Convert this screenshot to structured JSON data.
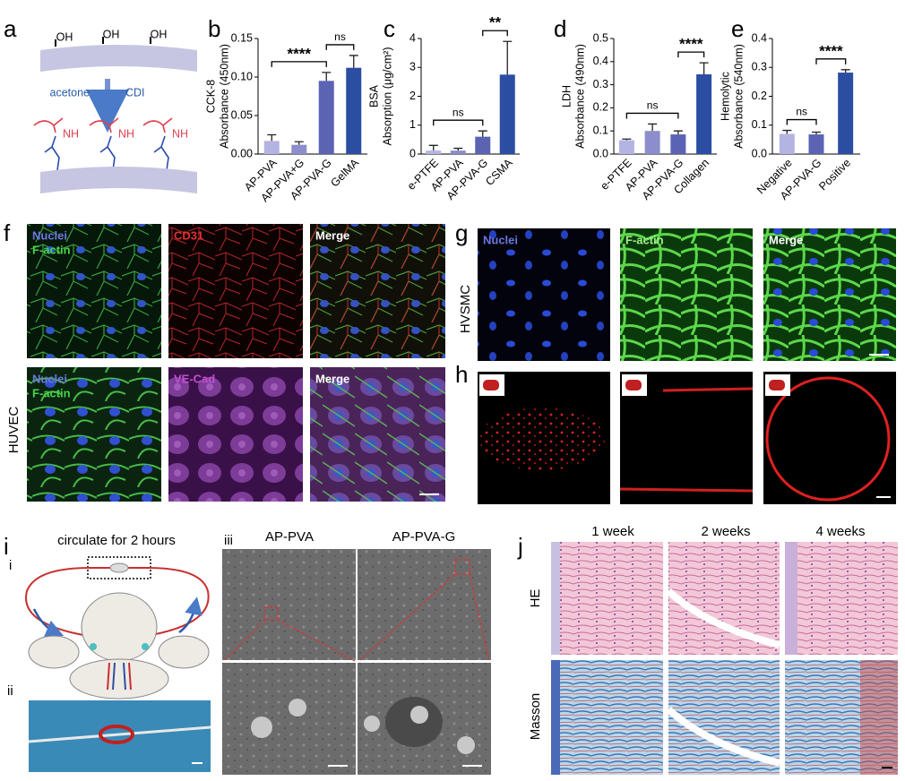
{
  "chart_data": [
    {
      "type": "bar",
      "panel": "b",
      "y_label": [
        "CCK-8",
        "Absorbance (450nm)"
      ],
      "categories": [
        "AP-PVA",
        "AP-PVA+G",
        "AP-PVA-G",
        "GelMA"
      ],
      "values": [
        0.017,
        0.012,
        0.095,
        0.112
      ],
      "errors": [
        0.008,
        0.004,
        0.011,
        0.016
      ],
      "colors": [
        "#b4b4e2",
        "#8c8ecb",
        "#5b63b3",
        "#2b4ea2"
      ],
      "ylim": [
        0,
        0.15
      ],
      "yticks": [
        {
          "value": 0,
          "label": "0.00"
        },
        {
          "value": 0.05,
          "label": "0.05"
        },
        {
          "value": 0.1,
          "label": "0.10"
        },
        {
          "value": 0.15,
          "label": "0.15"
        }
      ],
      "significance": [
        {
          "text": "****",
          "from": "AP-PVA",
          "to": "AP-PVA-G"
        },
        {
          "text": "ns",
          "from": "AP-PVA-G",
          "to": "GelMA"
        }
      ]
    },
    {
      "type": "bar",
      "panel": "c",
      "y_label": [
        "BSA",
        "Absorption (μg/cm²)"
      ],
      "categories": [
        "e-PTFE",
        "AP-PVA",
        "AP-PVA-G",
        "CSMA"
      ],
      "values": [
        0.12,
        0.12,
        0.6,
        2.75
      ],
      "errors": [
        0.18,
        0.08,
        0.2,
        1.15
      ],
      "colors": [
        "#b4b4e2",
        "#8c8ecb",
        "#5b63b3",
        "#2b4ea2"
      ],
      "ylim": [
        0,
        4
      ],
      "yticks": [
        0,
        1,
        2,
        3,
        4
      ],
      "significance": [
        {
          "text": "ns",
          "from": "e-PTFE",
          "to": "AP-PVA-G"
        },
        {
          "text": "**",
          "from": "AP-PVA-G",
          "to": "CSMA"
        }
      ]
    },
    {
      "type": "bar",
      "panel": "d",
      "y_label": [
        "LDH",
        "Absorbance (490nm)"
      ],
      "categories": [
        "e-PTFE",
        "AP-PVA",
        "AP-PVA-G",
        "Collagen"
      ],
      "values": [
        0.06,
        0.1,
        0.085,
        0.345
      ],
      "errors": [
        0.005,
        0.03,
        0.015,
        0.05
      ],
      "colors": [
        "#b4b4e2",
        "#8c8ecb",
        "#5b63b3",
        "#2b4ea2"
      ],
      "ylim": [
        0,
        0.5
      ],
      "yticks": [
        {
          "value": 0,
          "label": "0.0"
        },
        0.1,
        0.2,
        0.3,
        0.4,
        0.5
      ],
      "significance": [
        {
          "text": "ns",
          "from": "e-PTFE",
          "to": "AP-PVA-G"
        },
        {
          "text": "****",
          "from": "AP-PVA-G",
          "to": "Collagen"
        }
      ]
    },
    {
      "type": "bar",
      "panel": "e",
      "y_label": [
        "Hemolytic",
        "Absorbance (540nm)"
      ],
      "categories": [
        "Negative",
        "AP-PVA-G",
        "Positive"
      ],
      "values": [
        0.07,
        0.068,
        0.282
      ],
      "errors": [
        0.012,
        0.008,
        0.01
      ],
      "colors": [
        "#b4b4e2",
        "#5b63b3",
        "#2b4ea2"
      ],
      "ylim": [
        0,
        0.4
      ],
      "yticks": [
        {
          "value": 0,
          "label": "0.0"
        },
        0.1,
        0.2,
        0.3,
        0.4
      ],
      "significance": [
        {
          "text": "ns",
          "from": "Negative",
          "to": "AP-PVA-G"
        },
        {
          "text": "****",
          "from": "AP-PVA-G",
          "to": "Positive"
        }
      ]
    }
  ],
  "panel_a": {
    "label": "a",
    "groups": [
      "OH",
      "OH",
      "OH"
    ],
    "reagents": [
      "acetone",
      "CDI"
    ],
    "amines": [
      "NH",
      "NH",
      "NH"
    ]
  },
  "panel_f": {
    "label": "f",
    "cell": "HUVEC",
    "top": [
      "Nuclei",
      "F-actin",
      "CD31",
      "Merge"
    ],
    "bottom": [
      "Nuclei",
      "F-actin",
      "VE-Cad",
      "Merge"
    ]
  },
  "panel_g": {
    "label": "g",
    "cell": "HVSMC",
    "images": [
      "Nuclei",
      "F-actin",
      "Merge"
    ]
  },
  "panel_h": {
    "label": "h"
  },
  "panel_i": {
    "label": "i",
    "caption": "circulate for 2 hours",
    "sub": [
      "i",
      "ii",
      "iii"
    ],
    "columns": [
      "AP-PVA",
      "AP-PVA-G"
    ]
  },
  "panel_j": {
    "label": "j",
    "columns": [
      "1 week",
      "2 weeks",
      "4 weeks"
    ],
    "rows": [
      "HE",
      "Masson"
    ]
  }
}
